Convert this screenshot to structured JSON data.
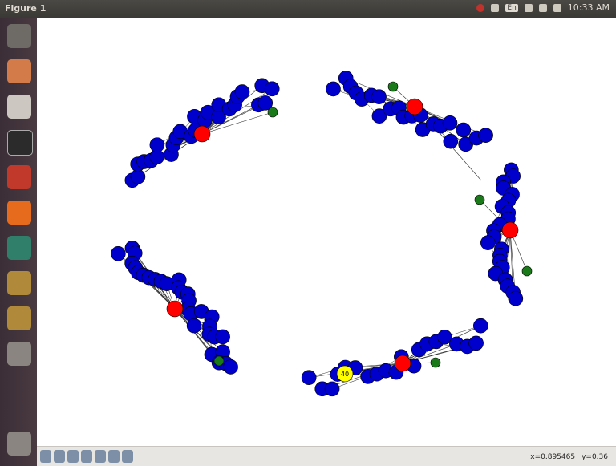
{
  "window": {
    "title": "Figure 1"
  },
  "top_panel": {
    "keyboard": "En",
    "clock": "10:33 AM"
  },
  "graph": {
    "highlighted_node_label": "40"
  },
  "status": {
    "x": "x=0.895465",
    "y": "y=0.36"
  }
}
